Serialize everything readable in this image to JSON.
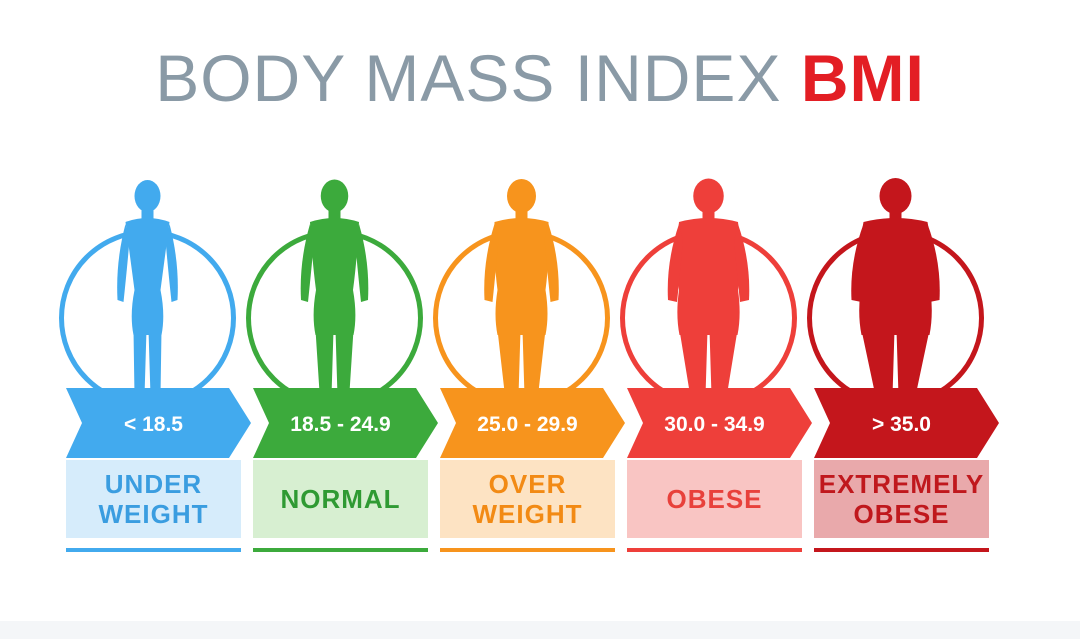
{
  "title": {
    "main": "BODY MASS INDEX",
    "accent": "BMI",
    "main_color": "#8a9aa6",
    "accent_color": "#e31e24"
  },
  "categories": [
    {
      "range": "< 18.5",
      "label_lines": [
        "UNDER",
        "WEIGHT"
      ],
      "color": "#42aaee",
      "panel_color": "#d6ecfb",
      "label_color": "#3a9de0",
      "body_width": 0.0,
      "icon": "slim-figure-icon"
    },
    {
      "range": "18.5 - 24.9",
      "label_lines": [
        "NORMAL"
      ],
      "color": "#3caa3c",
      "panel_color": "#d7efd1",
      "label_color": "#2f9a33",
      "body_width": 0.25,
      "icon": "normal-figure-icon"
    },
    {
      "range": "25.0 - 29.9",
      "label_lines": [
        "OVER",
        "WEIGHT"
      ],
      "color": "#f7941d",
      "panel_color": "#fde3c3",
      "label_color": "#f28a14",
      "body_width": 0.5,
      "icon": "overweight-figure-icon"
    },
    {
      "range": "30.0 - 34.9",
      "label_lines": [
        "OBESE"
      ],
      "color": "#ee3f3a",
      "panel_color": "#f9c5c3",
      "label_color": "#e8413b",
      "body_width": 0.75,
      "icon": "obese-figure-icon"
    },
    {
      "range": "> 35.0",
      "label_lines": [
        "EXTREMELY",
        "OBESE"
      ],
      "color": "#c4161c",
      "panel_color": "#e9a9ab",
      "label_color": "#c0181d",
      "body_width": 1.0,
      "icon": "extremely-obese-figure-icon"
    }
  ]
}
